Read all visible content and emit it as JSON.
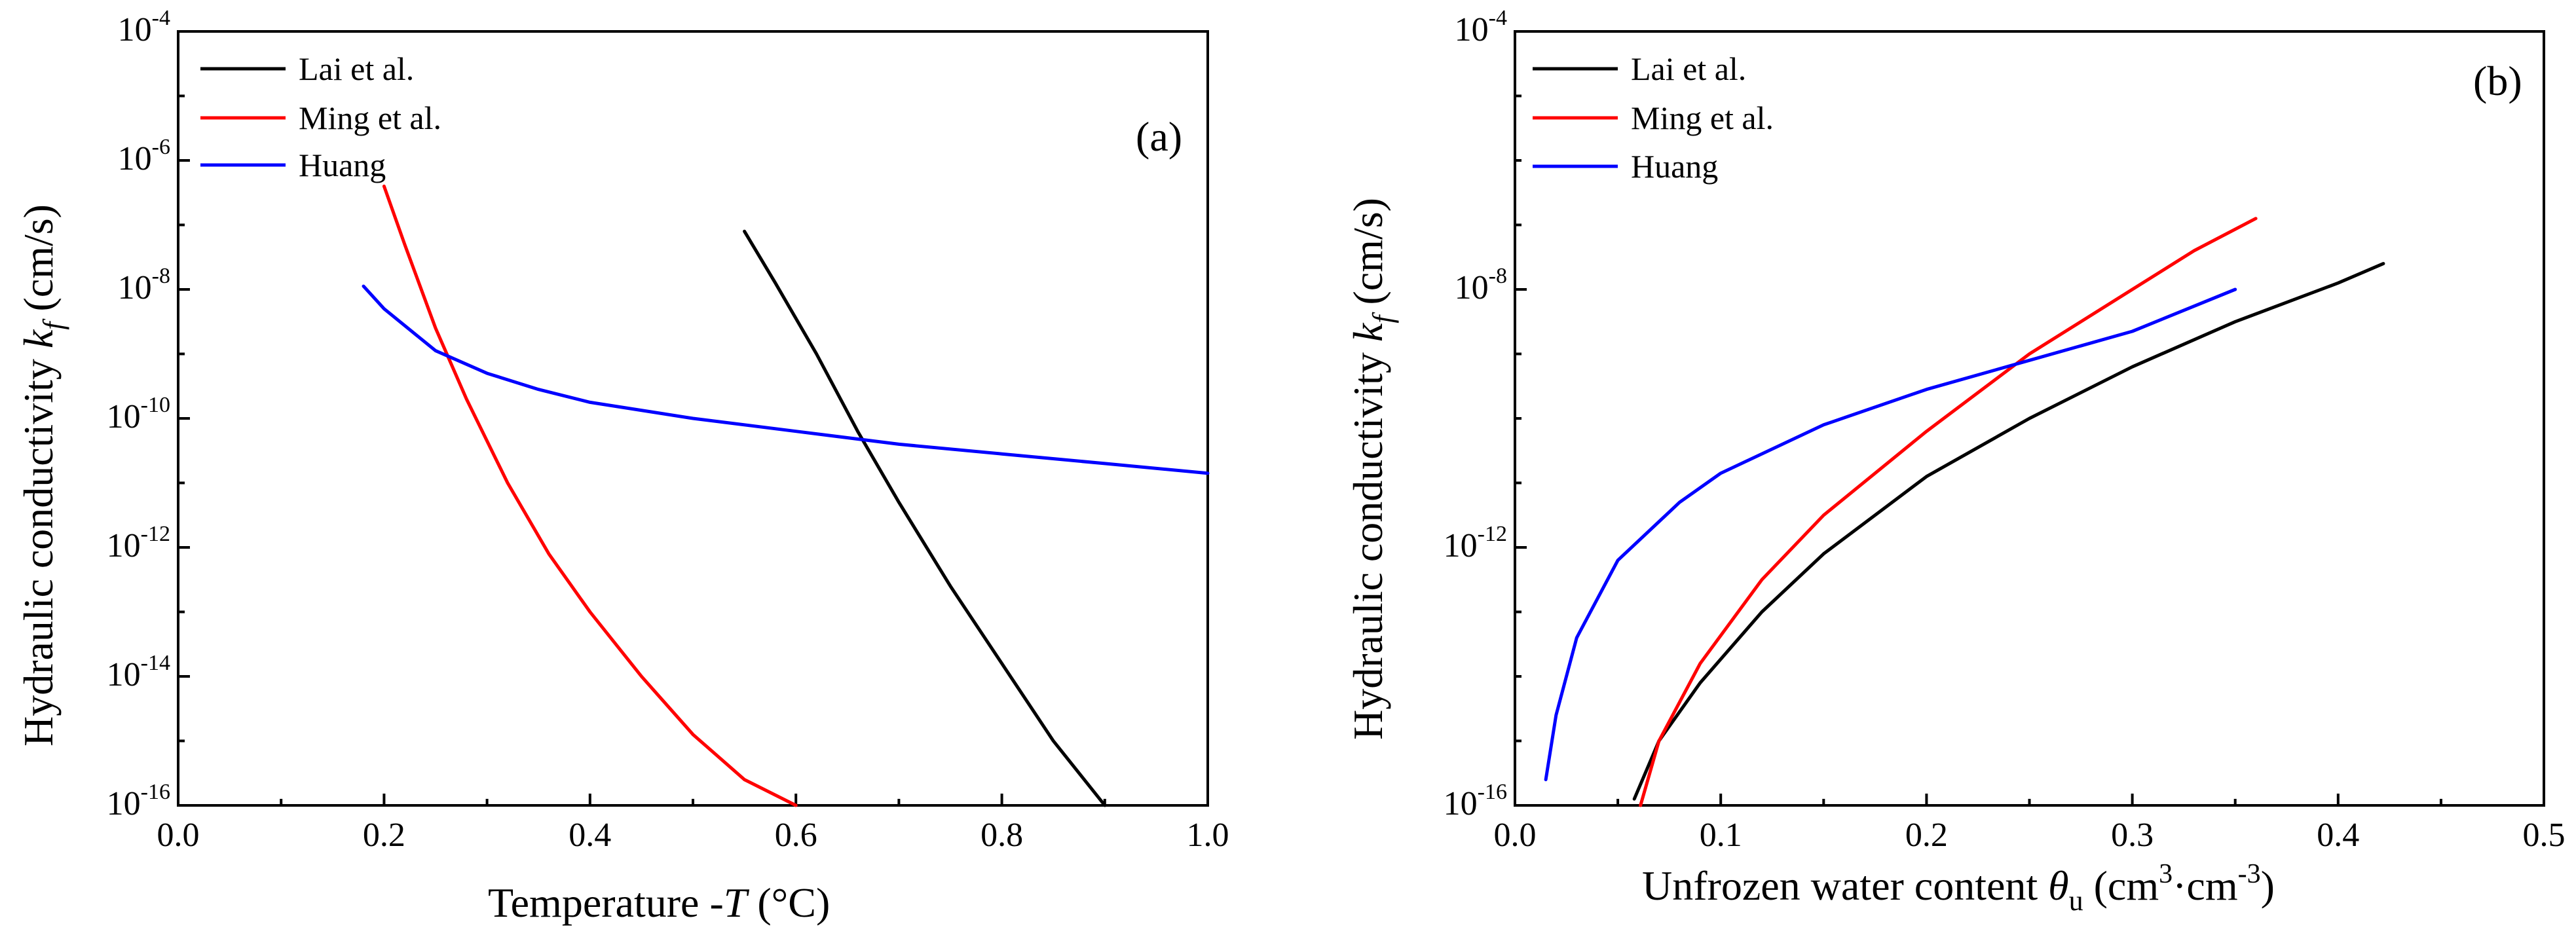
{
  "chart_data": [
    {
      "panel": "(a)",
      "type": "line",
      "xlabel": "Temperature -T (°C)",
      "ylabel": "Hydraulic conductivity k_f (cm/s)",
      "xlim": [
        0.0,
        1.0
      ],
      "ylim_log10": [
        -16,
        -4
      ],
      "x_ticks": [
        {
          "value": 0.0,
          "label": "0.0"
        },
        {
          "value": 0.2,
          "label": "0.2"
        },
        {
          "value": 0.4,
          "label": "0.4"
        },
        {
          "value": 0.6,
          "label": "0.6"
        },
        {
          "value": 0.8,
          "label": "0.8"
        },
        {
          "value": 1.0,
          "label": "1.0"
        }
      ],
      "y_ticks": [
        {
          "exp": -16,
          "label_base": "10",
          "label_exp": "-16"
        },
        {
          "exp": -14,
          "label_base": "10",
          "label_exp": "-14"
        },
        {
          "exp": -12,
          "label_base": "10",
          "label_exp": "-12"
        },
        {
          "exp": -10,
          "label_base": "10",
          "label_exp": "-10"
        },
        {
          "exp": -8,
          "label_base": "10",
          "label_exp": "-8"
        },
        {
          "exp": -6,
          "label_base": "10",
          "label_exp": "-6"
        },
        {
          "exp": -4,
          "label_base": "10",
          "label_exp": "-4"
        }
      ],
      "legend_position": "top-left",
      "series": [
        {
          "name": "Lai et al.",
          "color": "#000000",
          "x": [
            0.55,
            0.58,
            0.62,
            0.66,
            0.7,
            0.75,
            0.8,
            0.85,
            0.9
          ],
          "log10_y": [
            -7.1,
            -7.9,
            -9.0,
            -10.2,
            -11.3,
            -12.6,
            -13.8,
            -15.0,
            -16.0
          ]
        },
        {
          "name": "Ming et al.",
          "color": "#ff0000",
          "x": [
            0.2,
            0.22,
            0.25,
            0.28,
            0.32,
            0.36,
            0.4,
            0.45,
            0.5,
            0.55,
            0.6
          ],
          "log10_y": [
            -6.4,
            -7.3,
            -8.6,
            -9.7,
            -11.0,
            -12.1,
            -13.0,
            -14.0,
            -14.9,
            -15.6,
            -16.0
          ]
        },
        {
          "name": "Huang",
          "color": "#0000ff",
          "x": [
            0.18,
            0.2,
            0.25,
            0.3,
            0.35,
            0.4,
            0.5,
            0.6,
            0.7,
            0.8,
            0.9,
            1.0
          ],
          "log10_y": [
            -7.95,
            -8.3,
            -8.95,
            -9.3,
            -9.55,
            -9.75,
            -10.0,
            -10.2,
            -10.4,
            -10.55,
            -10.7,
            -10.85
          ]
        }
      ],
      "annotation": "(a)"
    },
    {
      "panel": "(b)",
      "type": "line",
      "xlabel": "Unfrozen water content θu (cm3·cm-3)",
      "ylabel": "Hydraulic conductivity k_f (cm/s)",
      "xlim": [
        0.0,
        0.5
      ],
      "ylim_log10": [
        -16,
        -4
      ],
      "x_ticks": [
        {
          "value": 0.0,
          "label": "0.0"
        },
        {
          "value": 0.1,
          "label": "0.1"
        },
        {
          "value": 0.2,
          "label": "0.2"
        },
        {
          "value": 0.3,
          "label": "0.3"
        },
        {
          "value": 0.4,
          "label": "0.4"
        },
        {
          "value": 0.5,
          "label": "0.5"
        }
      ],
      "y_ticks": [
        {
          "exp": -16,
          "label_base": "10",
          "label_exp": "-16"
        },
        {
          "exp": -12,
          "label_base": "10",
          "label_exp": "-12"
        },
        {
          "exp": -8,
          "label_base": "10",
          "label_exp": "-8"
        },
        {
          "exp": -4,
          "label_base": "10",
          "label_exp": "-4"
        }
      ],
      "legend_position": "top-left",
      "series": [
        {
          "name": "Lai et al.",
          "color": "#000000",
          "x": [
            0.058,
            0.07,
            0.09,
            0.12,
            0.15,
            0.2,
            0.25,
            0.3,
            0.35,
            0.4,
            0.422
          ],
          "log10_y": [
            -15.9,
            -15.0,
            -14.1,
            -13.0,
            -12.1,
            -10.9,
            -10.0,
            -9.2,
            -8.5,
            -7.9,
            -7.6
          ]
        },
        {
          "name": "Ming et al.",
          "color": "#ff0000",
          "x": [
            0.061,
            0.07,
            0.09,
            0.12,
            0.15,
            0.2,
            0.25,
            0.3,
            0.33,
            0.36
          ],
          "log10_y": [
            -16.0,
            -15.0,
            -13.8,
            -12.5,
            -11.5,
            -10.2,
            -9.0,
            -8.0,
            -7.4,
            -6.9
          ]
        },
        {
          "name": "Huang",
          "color": "#0000ff",
          "x": [
            0.015,
            0.02,
            0.03,
            0.05,
            0.08,
            0.1,
            0.15,
            0.2,
            0.25,
            0.3,
            0.35
          ],
          "log10_y": [
            -15.6,
            -14.6,
            -13.4,
            -12.2,
            -11.3,
            -10.85,
            -10.1,
            -9.55,
            -9.1,
            -8.65,
            -8.0
          ]
        }
      ],
      "annotation": "(b)"
    }
  ],
  "labels": {
    "a_ylabel_prefix": "Hydraulic conductivity ",
    "a_ylabel_k": "k",
    "a_ylabel_sub": "f",
    "a_ylabel_suffix": " (cm/s)",
    "a_xlabel_prefix": "Temperature -",
    "a_xlabel_T": "T",
    "a_xlabel_suffix": " (°C)",
    "b_ylabel_prefix": "Hydraulic conductivity ",
    "b_ylabel_k": "k",
    "b_ylabel_sub": "f",
    "b_ylabel_suffix": " (cm/s)",
    "b_xlabel_prefix": "Unfrozen water content ",
    "b_xlabel_theta": "θ",
    "b_xlabel_sub": "u",
    "b_xlabel_mid1": " (cm",
    "b_xlabel_sup1": "3",
    "b_xlabel_mid2": "·cm",
    "b_xlabel_sup2": "-3",
    "b_xlabel_end": ")"
  }
}
